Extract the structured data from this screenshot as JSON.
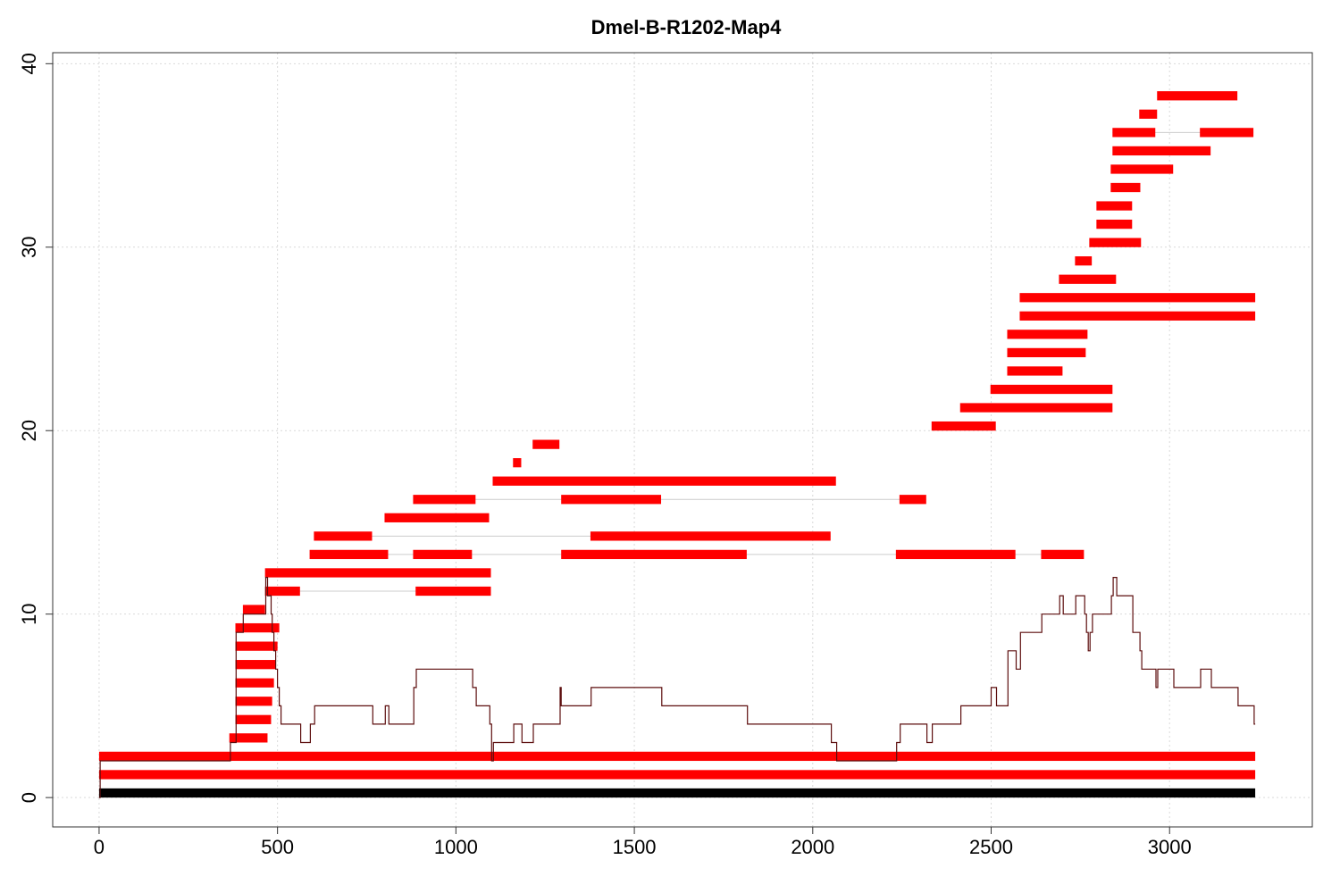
{
  "chart_data": {
    "type": "other",
    "title": "Dmel-B-R1202-Map4",
    "xlabel": "",
    "ylabel": "",
    "xlim": [
      -130,
      3400
    ],
    "ylim": [
      -1.6,
      40.6
    ],
    "grid": true,
    "x_ticks": [
      0,
      500,
      1000,
      1500,
      2000,
      2500,
      3000
    ],
    "y_ticks": [
      0,
      10,
      20,
      30,
      40
    ],
    "colors": {
      "alignment": "#ff0000",
      "reference": "#000000",
      "connector": "#cccccc",
      "coverage": "#5c0d0d"
    },
    "reference_bar": {
      "y": 0.25,
      "start": 0,
      "end": 3240
    },
    "alignment_rows": [
      {
        "y": 1.25,
        "segments": [
          [
            0,
            3240
          ]
        ]
      },
      {
        "y": 2.25,
        "segments": [
          [
            0,
            3240
          ]
        ]
      },
      {
        "y": 3.25,
        "segments": [
          [
            365,
            472
          ]
        ]
      },
      {
        "y": 4.25,
        "segments": [
          [
            382,
            482
          ]
        ]
      },
      {
        "y": 5.25,
        "segments": [
          [
            382,
            485
          ]
        ]
      },
      {
        "y": 6.25,
        "segments": [
          [
            382,
            490
          ]
        ]
      },
      {
        "y": 7.25,
        "segments": [
          [
            382,
            495
          ]
        ]
      },
      {
        "y": 8.25,
        "segments": [
          [
            382,
            500
          ]
        ]
      },
      {
        "y": 9.25,
        "segments": [
          [
            382,
            505
          ]
        ]
      },
      {
        "y": 10.25,
        "segments": [
          [
            403,
            465
          ]
        ]
      },
      {
        "y": 11.25,
        "segments": [
          [
            465,
            563
          ],
          [
            887,
            1098
          ]
        ]
      },
      {
        "y": 12.25,
        "segments": [
          [
            465,
            1098
          ]
        ]
      },
      {
        "y": 13.25,
        "segments": [
          [
            590,
            810
          ],
          [
            880,
            1045
          ],
          [
            1295,
            1815
          ],
          [
            2233,
            2568
          ],
          [
            2640,
            2760
          ]
        ]
      },
      {
        "y": 14.25,
        "segments": [
          [
            602,
            765
          ],
          [
            1377,
            2050
          ]
        ]
      },
      {
        "y": 15.25,
        "segments": [
          [
            800,
            1093
          ]
        ]
      },
      {
        "y": 16.25,
        "segments": [
          [
            880,
            1055
          ],
          [
            1295,
            1575
          ],
          [
            2243,
            2318
          ]
        ]
      },
      {
        "y": 17.25,
        "segments": [
          [
            1103,
            2065
          ]
        ]
      },
      {
        "y": 18.25,
        "segments": [
          [
            1160,
            1183
          ]
        ]
      },
      {
        "y": 19.25,
        "segments": [
          [
            1215,
            1290
          ]
        ]
      },
      {
        "y": 20.25,
        "segments": [
          [
            2333,
            2513
          ]
        ]
      },
      {
        "y": 21.25,
        "segments": [
          [
            2413,
            2840
          ]
        ]
      },
      {
        "y": 22.25,
        "segments": [
          [
            2498,
            2840
          ]
        ]
      },
      {
        "y": 23.25,
        "segments": [
          [
            2545,
            2700
          ]
        ]
      },
      {
        "y": 24.25,
        "segments": [
          [
            2545,
            2765
          ]
        ]
      },
      {
        "y": 25.25,
        "segments": [
          [
            2545,
            2770
          ]
        ]
      },
      {
        "y": 26.25,
        "segments": [
          [
            2580,
            3240
          ]
        ]
      },
      {
        "y": 27.25,
        "segments": [
          [
            2580,
            3240
          ]
        ]
      },
      {
        "y": 28.25,
        "segments": [
          [
            2690,
            2850
          ]
        ]
      },
      {
        "y": 29.25,
        "segments": [
          [
            2735,
            2782
          ]
        ]
      },
      {
        "y": 30.25,
        "segments": [
          [
            2775,
            2920
          ]
        ]
      },
      {
        "y": 31.25,
        "segments": [
          [
            2795,
            2895
          ]
        ]
      },
      {
        "y": 32.25,
        "segments": [
          [
            2795,
            2895
          ]
        ]
      },
      {
        "y": 33.25,
        "segments": [
          [
            2835,
            2918
          ]
        ]
      },
      {
        "y": 34.25,
        "segments": [
          [
            2835,
            3010
          ]
        ]
      },
      {
        "y": 35.25,
        "segments": [
          [
            2840,
            3115
          ]
        ]
      },
      {
        "y": 36.25,
        "segments": [
          [
            2840,
            2960
          ],
          [
            3085,
            3235
          ]
        ]
      },
      {
        "y": 37.25,
        "segments": [
          [
            2915,
            2965
          ]
        ]
      },
      {
        "y": 38.25,
        "segments": [
          [
            2965,
            3190
          ]
        ]
      }
    ],
    "coverage_steps": [
      [
        0,
        0
      ],
      [
        3,
        2
      ],
      [
        365,
        2
      ],
      [
        368,
        3
      ],
      [
        382,
        3
      ],
      [
        384,
        9
      ],
      [
        402,
        9
      ],
      [
        404,
        10
      ],
      [
        465,
        10
      ],
      [
        467,
        12
      ],
      [
        472,
        11
      ],
      [
        482,
        10
      ],
      [
        485,
        9
      ],
      [
        490,
        8
      ],
      [
        495,
        7
      ],
      [
        500,
        6
      ],
      [
        505,
        5
      ],
      [
        510,
        4
      ],
      [
        563,
        4
      ],
      [
        565,
        3
      ],
      [
        590,
        3
      ],
      [
        592,
        4
      ],
      [
        602,
        4
      ],
      [
        604,
        5
      ],
      [
        765,
        5
      ],
      [
        767,
        4
      ],
      [
        800,
        4
      ],
      [
        802,
        5
      ],
      [
        810,
        5
      ],
      [
        812,
        4
      ],
      [
        880,
        4
      ],
      [
        882,
        6
      ],
      [
        887,
        6
      ],
      [
        889,
        7
      ],
      [
        1045,
        7
      ],
      [
        1047,
        6
      ],
      [
        1055,
        6
      ],
      [
        1057,
        5
      ],
      [
        1093,
        5
      ],
      [
        1095,
        4
      ],
      [
        1098,
        4
      ],
      [
        1100,
        2
      ],
      [
        1103,
        2
      ],
      [
        1105,
        3
      ],
      [
        1160,
        3
      ],
      [
        1162,
        4
      ],
      [
        1183,
        4
      ],
      [
        1185,
        3
      ],
      [
        1215,
        3
      ],
      [
        1217,
        4
      ],
      [
        1290,
        4
      ],
      [
        1292,
        6
      ],
      [
        1295,
        5
      ],
      [
        1377,
        5
      ],
      [
        1379,
        6
      ],
      [
        1575,
        6
      ],
      [
        1577,
        5
      ],
      [
        1815,
        5
      ],
      [
        1817,
        4
      ],
      [
        2050,
        4
      ],
      [
        2052,
        3
      ],
      [
        2065,
        3
      ],
      [
        2067,
        2
      ],
      [
        2233,
        2
      ],
      [
        2235,
        3
      ],
      [
        2243,
        3
      ],
      [
        2245,
        4
      ],
      [
        2318,
        4
      ],
      [
        2320,
        3
      ],
      [
        2333,
        3
      ],
      [
        2335,
        4
      ],
      [
        2413,
        4
      ],
      [
        2415,
        5
      ],
      [
        2498,
        5
      ],
      [
        2500,
        6
      ],
      [
        2513,
        6
      ],
      [
        2515,
        5
      ],
      [
        2545,
        5
      ],
      [
        2547,
        8
      ],
      [
        2568,
        8
      ],
      [
        2570,
        7
      ],
      [
        2580,
        7
      ],
      [
        2582,
        9
      ],
      [
        2640,
        9
      ],
      [
        2642,
        10
      ],
      [
        2690,
        10
      ],
      [
        2692,
        11
      ],
      [
        2700,
        11
      ],
      [
        2702,
        10
      ],
      [
        2735,
        10
      ],
      [
        2737,
        11
      ],
      [
        2760,
        11
      ],
      [
        2762,
        10
      ],
      [
        2765,
        10
      ],
      [
        2767,
        9
      ],
      [
        2770,
        9
      ],
      [
        2772,
        8
      ],
      [
        2775,
        8
      ],
      [
        2777,
        9
      ],
      [
        2782,
        9
      ],
      [
        2784,
        10
      ],
      [
        2835,
        10
      ],
      [
        2837,
        11
      ],
      [
        2840,
        11
      ],
      [
        2842,
        12
      ],
      [
        2850,
        12
      ],
      [
        2852,
        11
      ],
      [
        2895,
        11
      ],
      [
        2897,
        9
      ],
      [
        2915,
        9
      ],
      [
        2917,
        8
      ],
      [
        2920,
        8
      ],
      [
        2922,
        7
      ],
      [
        2960,
        7
      ],
      [
        2962,
        6
      ],
      [
        2965,
        6
      ],
      [
        2967,
        7
      ],
      [
        3010,
        7
      ],
      [
        3012,
        6
      ],
      [
        3085,
        6
      ],
      [
        3087,
        7
      ],
      [
        3115,
        7
      ],
      [
        3117,
        6
      ],
      [
        3190,
        6
      ],
      [
        3192,
        5
      ],
      [
        3235,
        5
      ],
      [
        3237,
        4
      ],
      [
        3240,
        4
      ]
    ]
  }
}
